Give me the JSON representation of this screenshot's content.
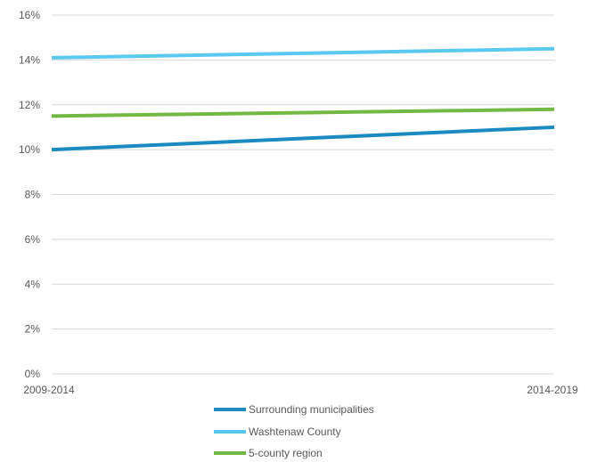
{
  "chart_data": {
    "type": "line",
    "title": "",
    "xlabel": "",
    "ylabel": "",
    "categories": [
      "2009-2014",
      "2014-2019"
    ],
    "y_tick_labels": [
      "0%",
      "2%",
      "4%",
      "6%",
      "8%",
      "10%",
      "12%",
      "14%",
      "16%"
    ],
    "ylim": [
      0,
      16
    ],
    "y_unit": "%",
    "grid": true,
    "legend_position": "bottom",
    "series": [
      {
        "name": "Surrounding municipalities",
        "values": [
          10.0,
          11.0
        ],
        "color": "#1a8ac0"
      },
      {
        "name": "Washtenaw County",
        "values": [
          14.1,
          14.5
        ],
        "color": "#5bc8ef"
      },
      {
        "name": "5-county region",
        "values": [
          11.5,
          11.8
        ],
        "color": "#72b843"
      }
    ]
  }
}
